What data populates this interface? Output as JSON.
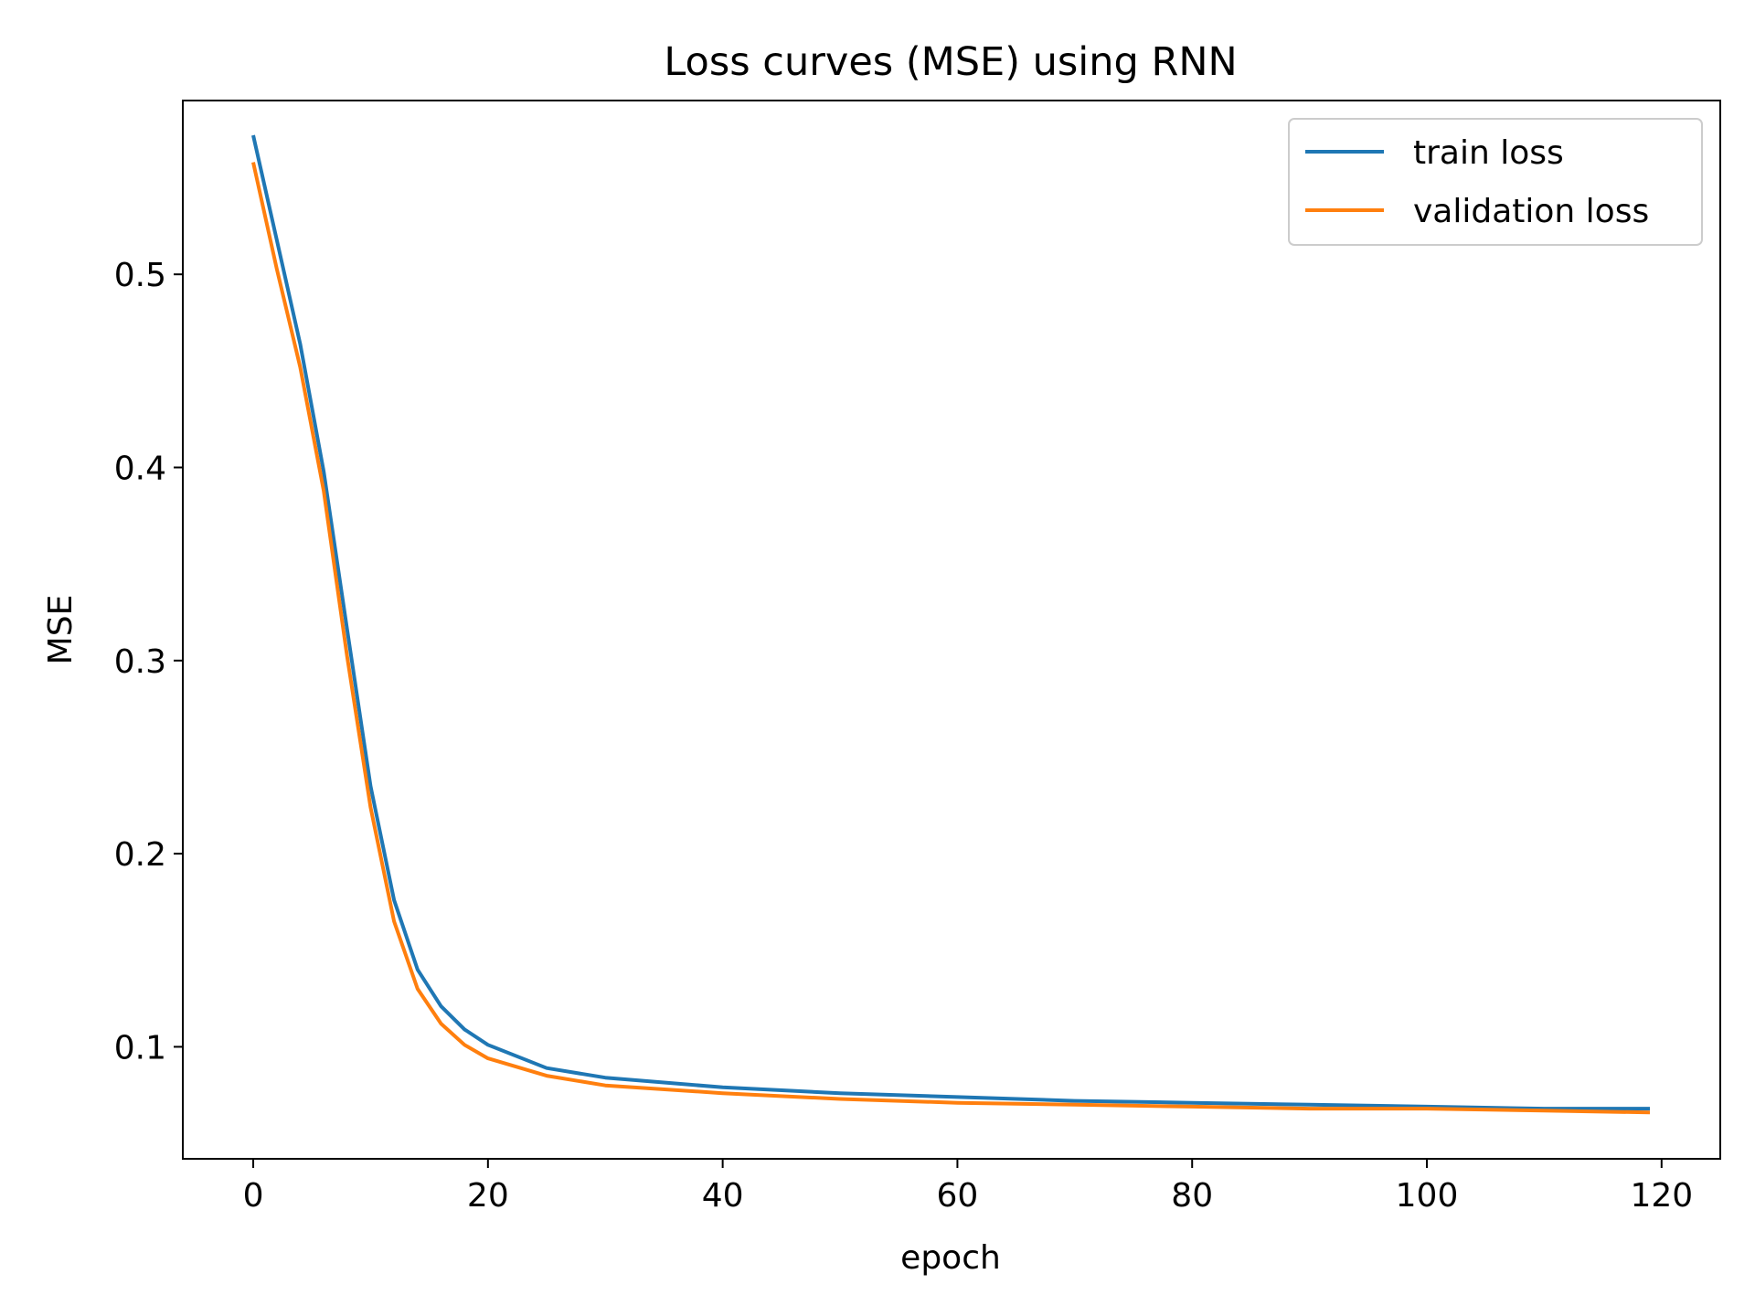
{
  "chart_data": {
    "type": "line",
    "title": "Loss curves (MSE) using RNN",
    "xlabel": "epoch",
    "ylabel": "MSE",
    "xlim": [
      -6,
      125
    ],
    "ylim": [
      0.042,
      0.59
    ],
    "xticks": [
      0,
      20,
      40,
      60,
      80,
      100,
      120
    ],
    "yticks": [
      0.1,
      0.2,
      0.3,
      0.4,
      0.5
    ],
    "grid": false,
    "legend_position": "top-right",
    "x": [
      0,
      2,
      4,
      6,
      8,
      10,
      12,
      14,
      16,
      18,
      20,
      25,
      30,
      40,
      50,
      60,
      70,
      80,
      90,
      100,
      110,
      119
    ],
    "series": [
      {
        "name": "train loss",
        "color": "#1f77b4",
        "values": [
          0.572,
          0.518,
          0.464,
          0.398,
          0.316,
          0.235,
          0.176,
          0.14,
          0.121,
          0.109,
          0.101,
          0.089,
          0.084,
          0.079,
          0.076,
          0.074,
          0.072,
          0.071,
          0.07,
          0.069,
          0.068,
          0.068
        ]
      },
      {
        "name": "validation loss",
        "color": "#ff7f0e",
        "values": [
          0.558,
          0.503,
          0.452,
          0.388,
          0.302,
          0.224,
          0.165,
          0.13,
          0.112,
          0.101,
          0.094,
          0.085,
          0.08,
          0.076,
          0.073,
          0.071,
          0.07,
          0.069,
          0.068,
          0.068,
          0.067,
          0.066
        ]
      }
    ]
  }
}
